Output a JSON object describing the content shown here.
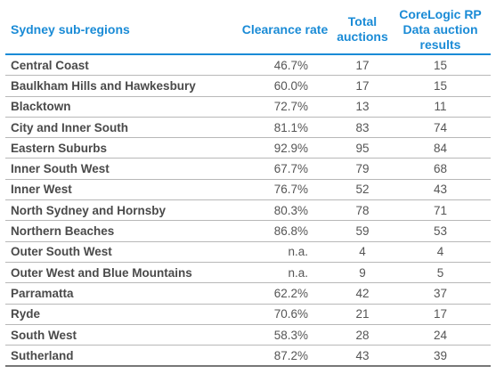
{
  "chart_data": {
    "type": "table",
    "columns": [
      "Sydney sub-regions",
      "Clearance rate",
      "Total auctions",
      "CoreLogic RP Data auction results"
    ],
    "rows": [
      [
        "Central Coast",
        "46.7%",
        "17",
        "15"
      ],
      [
        "Baulkham Hills and Hawkesbury",
        "60.0%",
        "17",
        "15"
      ],
      [
        "Blacktown",
        "72.7%",
        "13",
        "11"
      ],
      [
        "City and Inner South",
        "81.1%",
        "83",
        "74"
      ],
      [
        "Eastern Suburbs",
        "92.9%",
        "95",
        "84"
      ],
      [
        "Inner South West",
        "67.7%",
        "79",
        "68"
      ],
      [
        "Inner West",
        "76.7%",
        "52",
        "43"
      ],
      [
        "North Sydney and Hornsby",
        "80.3%",
        "78",
        "71"
      ],
      [
        "Northern Beaches",
        "86.8%",
        "59",
        "53"
      ],
      [
        "Outer South West",
        "n.a.",
        "4",
        "4"
      ],
      [
        "Outer West and Blue Mountains",
        "n.a.",
        "9",
        "5"
      ],
      [
        "Parramatta",
        "62.2%",
        "42",
        "37"
      ],
      [
        "Ryde",
        "70.6%",
        "21",
        "17"
      ],
      [
        "South West",
        "58.3%",
        "28",
        "24"
      ],
      [
        "Sutherland",
        "87.2%",
        "43",
        "39"
      ]
    ]
  },
  "colors": {
    "header_text": "#1a8bd6",
    "body_text": "#555555",
    "row_divider": "#b8b8b8"
  }
}
